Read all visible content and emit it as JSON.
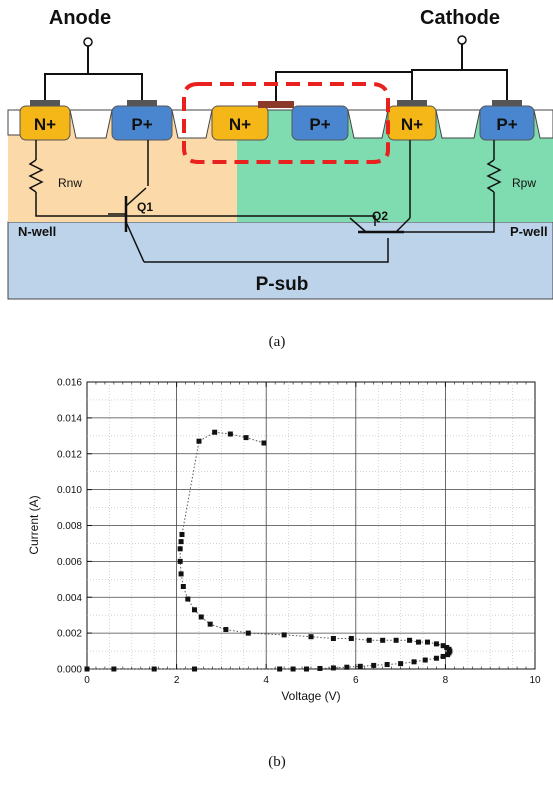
{
  "diagram": {
    "terminals": {
      "anode": "Anode",
      "cathode": "Cathode"
    },
    "regions": {
      "n_plus": "N+",
      "p_plus": "P+",
      "nwell": "N-well",
      "pwell": "P-well",
      "psub": "P-sub"
    },
    "resistors": {
      "rnw": "Rnw",
      "rpw": "Rpw"
    },
    "transistors": {
      "q1": "Q1",
      "q2": "Q2"
    },
    "colors": {
      "n_plus": "#f5b617",
      "p_plus": "#4a86cf",
      "nwell": "#fbd9a8",
      "pwell": "#6fd3a4",
      "psub": "#bcd3ea",
      "highlight": "#e8211f",
      "contact": "#8b3a2a"
    }
  },
  "captions": {
    "a": "(a)",
    "b": "(b)"
  },
  "chart_data": {
    "type": "scatter",
    "xlabel": "Voltage (V)",
    "ylabel": "Current (A)",
    "xlim": [
      0,
      10
    ],
    "ylim": [
      0,
      0.016
    ],
    "xticks": [
      "0",
      "2",
      "4",
      "6",
      "8",
      "10"
    ],
    "yticks": [
      "0.000",
      "0.002",
      "0.004",
      "0.006",
      "0.008",
      "0.010",
      "0.012",
      "0.014",
      "0.016"
    ],
    "grid": true,
    "series": [
      {
        "marker": "square",
        "line": "dotted",
        "points": [
          [
            0.0,
            0.0
          ],
          [
            0.6,
            0.0
          ],
          [
            1.5,
            0.0
          ],
          [
            2.4,
            0.0
          ],
          [
            4.3,
            0.0
          ],
          [
            4.6,
            0.0
          ],
          [
            4.9,
            0.0
          ],
          [
            5.2,
            3e-05
          ],
          [
            5.5,
            6e-05
          ],
          [
            5.8,
            0.0001
          ],
          [
            6.1,
            0.00015
          ],
          [
            6.4,
            0.0002
          ],
          [
            6.7,
            0.00025
          ],
          [
            7.0,
            0.0003
          ],
          [
            7.3,
            0.0004
          ],
          [
            7.55,
            0.0005
          ],
          [
            7.8,
            0.0006
          ],
          [
            7.95,
            0.0007
          ],
          [
            8.05,
            0.0008
          ],
          [
            8.08,
            0.0009
          ],
          [
            8.1,
            0.001
          ],
          [
            8.08,
            0.0011
          ],
          [
            8.03,
            0.0012
          ],
          [
            7.95,
            0.0013
          ],
          [
            7.8,
            0.0014
          ],
          [
            7.6,
            0.0015
          ],
          [
            7.4,
            0.0015
          ],
          [
            7.2,
            0.0016
          ],
          [
            6.9,
            0.0016
          ],
          [
            6.6,
            0.0016
          ],
          [
            6.3,
            0.0016
          ],
          [
            5.9,
            0.0017
          ],
          [
            5.5,
            0.0017
          ],
          [
            5.0,
            0.0018
          ],
          [
            4.4,
            0.0019
          ],
          [
            3.6,
            0.002
          ],
          [
            3.1,
            0.0022
          ],
          [
            2.75,
            0.0025
          ],
          [
            2.55,
            0.0029
          ],
          [
            2.4,
            0.0033
          ],
          [
            2.25,
            0.0039
          ],
          [
            2.15,
            0.0046
          ],
          [
            2.1,
            0.0053
          ],
          [
            2.08,
            0.006
          ],
          [
            2.08,
            0.0067
          ],
          [
            2.1,
            0.0071
          ],
          [
            2.12,
            0.0075
          ],
          [
            2.5,
            0.0127
          ],
          [
            2.85,
            0.0132
          ],
          [
            3.2,
            0.0131
          ],
          [
            3.55,
            0.0129
          ],
          [
            3.95,
            0.0126
          ]
        ]
      }
    ]
  }
}
